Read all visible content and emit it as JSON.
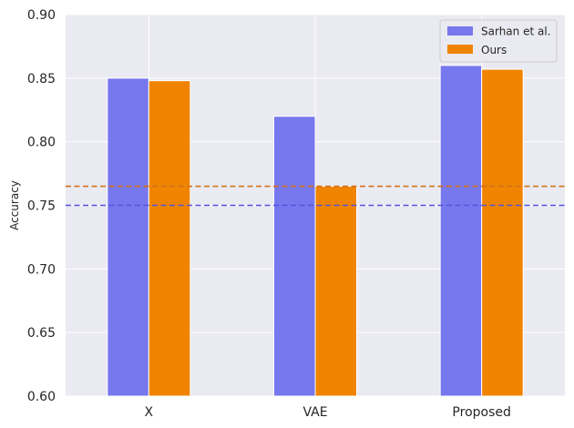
{
  "chart_data": {
    "type": "bar",
    "categories": [
      "X",
      "VAE",
      "Proposed"
    ],
    "series": [
      {
        "name": "Sarhan et al.",
        "values": [
          0.85,
          0.82,
          0.86
        ],
        "color": "#7777ee"
      },
      {
        "name": "Ours",
        "values": [
          0.848,
          0.765,
          0.857
        ],
        "color": "#f08400"
      }
    ],
    "reference_lines": [
      {
        "value": 0.75,
        "color": "#5555dd",
        "style": "dashed"
      },
      {
        "value": 0.765,
        "color": "#d2701a",
        "style": "dashed"
      }
    ],
    "ylabel": "Accuracy",
    "xlabel": "",
    "title": "",
    "ylim": [
      0.6,
      0.9
    ],
    "yticks": [
      "0.60",
      "0.65",
      "0.70",
      "0.75",
      "0.80",
      "0.85",
      "0.90"
    ],
    "grid": true,
    "legend_position": "top-right",
    "background": "#eaeaf2"
  }
}
